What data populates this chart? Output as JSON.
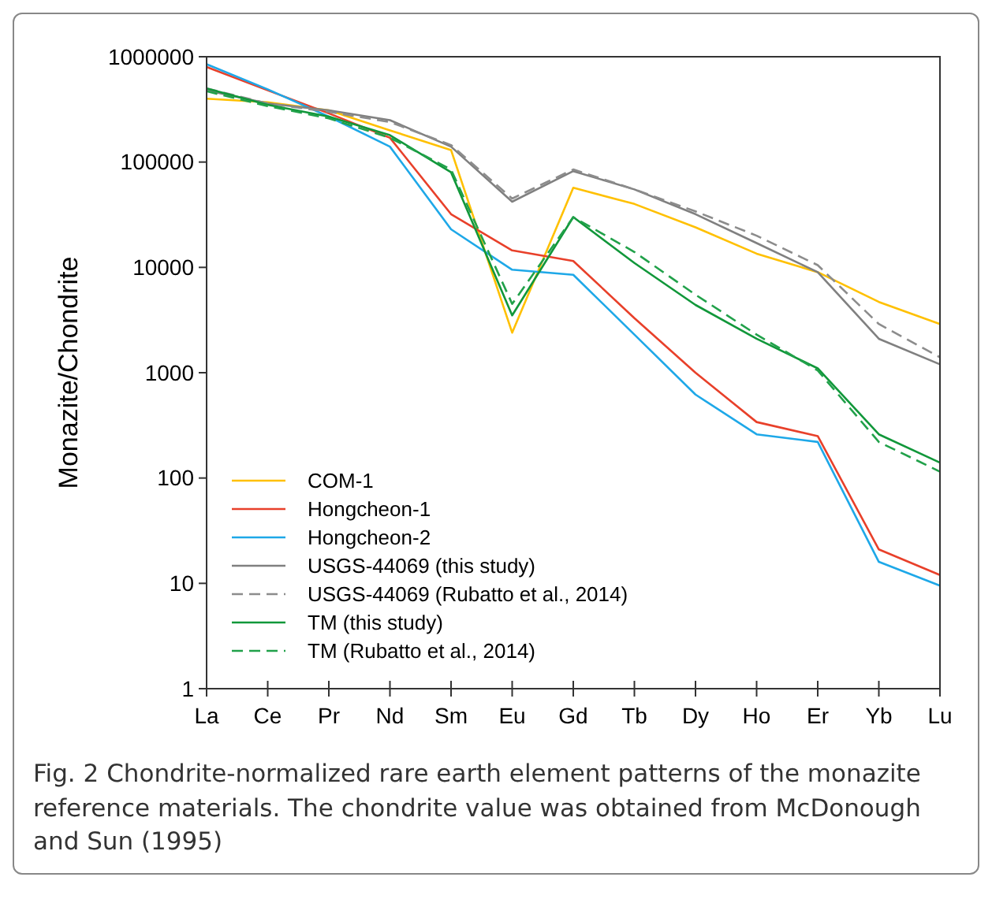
{
  "chart_data": {
    "type": "line",
    "ylabel": "Monazite/Chondrite",
    "log": "y",
    "ylim": [
      1,
      1000000
    ],
    "yticks": [
      1,
      10,
      100,
      1000,
      10000,
      100000,
      1000000
    ],
    "categories": [
      "La",
      "Ce",
      "Pr",
      "Nd",
      "Sm",
      "Eu",
      "Gd",
      "Tb",
      "Dy",
      "Ho",
      "Er",
      "Yb",
      "Lu"
    ],
    "legend": "bottom left",
    "grid": false,
    "annotations": [
      "Fig. 2  Chondrite-normalized rare earth element patterns of the monazite reference materials. The chondrite value was obtained from McDonough and Sun (1995)"
    ],
    "series": [
      {
        "name": "COM-1",
        "color": "#ffc000",
        "line_style": "solid",
        "values": [
          400000,
          370000,
          310000,
          200000,
          130000,
          2400,
          57000,
          40000,
          24000,
          13500,
          9000,
          4700,
          2900
        ]
      },
      {
        "name": "Hongcheon-1",
        "color": "#e8402a",
        "line_style": "solid",
        "values": [
          800000,
          480000,
          290000,
          170000,
          32000,
          14500,
          11500,
          3300,
          1000,
          340,
          250,
          21,
          12
        ]
      },
      {
        "name": "Hongcheon-2",
        "color": "#1ea8e8",
        "line_style": "solid",
        "values": [
          850000,
          490000,
          270000,
          140000,
          23000,
          9500,
          8500,
          2300,
          620,
          260,
          220,
          16,
          9.5
        ]
      },
      {
        "name": "USGS-44069 (this study)",
        "color": "#808080",
        "line_style": "solid",
        "values": [
          480000,
          360000,
          310000,
          250000,
          140000,
          42000,
          82000,
          55000,
          32000,
          17000,
          9000,
          2100,
          1200
        ]
      },
      {
        "name": "USGS-44069 (Rubatto et al., 2014)",
        "color": "#8c8c8c",
        "line_style": "dashed",
        "values": [
          500000,
          360000,
          300000,
          240000,
          145000,
          45000,
          85000,
          55000,
          34000,
          20000,
          10500,
          2900,
          1400
        ]
      },
      {
        "name": "TM (this study)",
        "color": "#11973a",
        "line_style": "solid",
        "values": [
          500000,
          350000,
          270000,
          180000,
          80000,
          3500,
          30000,
          11000,
          4400,
          2100,
          1100,
          260,
          140
        ]
      },
      {
        "name": "TM (Rubatto et al., 2014)",
        "color": "#21a14a",
        "line_style": "dashed",
        "values": [
          470000,
          340000,
          260000,
          170000,
          85000,
          4500,
          30000,
          14000,
          5500,
          2300,
          1050,
          220,
          115
        ]
      }
    ]
  }
}
